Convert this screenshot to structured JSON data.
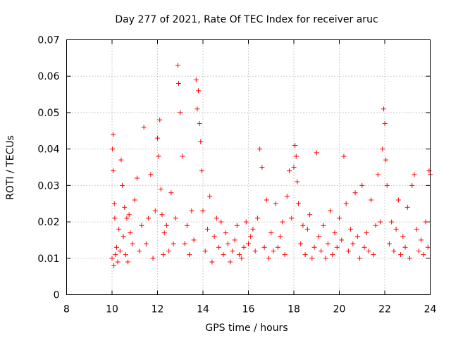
{
  "chart_data": {
    "type": "scatter",
    "title": "Day 277 of 2021, Rate Of TEC Index for receiver aruc",
    "xlabel": "GPS time / hours",
    "ylabel": "ROTI / TECUs",
    "xlim": [
      8,
      24
    ],
    "ylim": [
      0,
      0.07
    ],
    "x_ticks": [
      "8",
      "10",
      "12",
      "14",
      "16",
      "18",
      "20",
      "22",
      "24"
    ],
    "y_ticks": [
      "0",
      "0.01",
      "0.02",
      "0.03",
      "0.04",
      "0.05",
      "0.06",
      "0.07"
    ],
    "grid": true,
    "marker": "+",
    "series_color": "#ff0000",
    "series": [
      {
        "x": [
          10.0,
          10.02,
          10.05,
          10.05,
          10.08,
          10.1,
          10.12,
          10.15,
          10.2,
          10.25,
          10.3,
          10.35,
          10.4,
          10.45,
          10.5,
          10.55,
          10.6,
          10.65,
          10.7,
          10.75,
          10.8,
          10.9,
          11.0,
          11.1,
          11.2,
          11.3,
          11.4,
          11.5,
          11.6,
          11.7,
          11.8,
          11.9,
          12.0,
          12.05,
          12.1,
          12.15,
          12.2,
          12.25,
          12.3,
          12.4,
          12.5,
          12.6,
          12.7,
          12.8,
          12.9,
          12.93,
          13.0,
          13.1,
          13.2,
          13.3,
          13.4,
          13.5,
          13.6,
          13.7,
          13.75,
          13.8,
          13.85,
          13.9,
          13.95,
          14.0,
          14.1,
          14.2,
          14.3,
          14.4,
          14.5,
          14.6,
          14.7,
          14.8,
          14.9,
          15.0,
          15.1,
          15.2,
          15.3,
          15.4,
          15.5,
          15.6,
          15.7,
          15.8,
          15.9,
          16.0,
          16.1,
          16.2,
          16.3,
          16.4,
          16.5,
          16.6,
          16.7,
          16.8,
          16.9,
          17.0,
          17.1,
          17.2,
          17.3,
          17.4,
          17.5,
          17.6,
          17.7,
          17.8,
          17.9,
          18.0,
          18.05,
          18.1,
          18.15,
          18.2,
          18.3,
          18.4,
          18.5,
          18.6,
          18.7,
          18.8,
          18.9,
          19.0,
          19.1,
          19.2,
          19.3,
          19.4,
          19.5,
          19.6,
          19.7,
          19.8,
          19.9,
          20.0,
          20.1,
          20.2,
          20.3,
          20.4,
          20.5,
          20.6,
          20.7,
          20.8,
          20.9,
          21.0,
          21.1,
          21.2,
          21.3,
          21.4,
          21.5,
          21.6,
          21.7,
          21.8,
          21.9,
          21.95,
          22.0,
          22.05,
          22.1,
          22.2,
          22.3,
          22.4,
          22.5,
          22.6,
          22.7,
          22.8,
          22.9,
          23.0,
          23.1,
          23.2,
          23.3,
          23.4,
          23.5,
          23.6,
          23.7,
          23.8,
          23.9,
          23.95,
          24.0
        ],
        "y": [
          0.01,
          0.04,
          0.044,
          0.034,
          0.008,
          0.025,
          0.021,
          0.011,
          0.013,
          0.009,
          0.018,
          0.012,
          0.037,
          0.03,
          0.016,
          0.024,
          0.011,
          0.021,
          0.009,
          0.022,
          0.017,
          0.014,
          0.026,
          0.032,
          0.012,
          0.019,
          0.046,
          0.014,
          0.021,
          0.033,
          0.01,
          0.023,
          0.043,
          0.038,
          0.048,
          0.029,
          0.022,
          0.011,
          0.017,
          0.019,
          0.012,
          0.028,
          0.014,
          0.021,
          0.063,
          0.058,
          0.05,
          0.038,
          0.014,
          0.019,
          0.011,
          0.023,
          0.015,
          0.059,
          0.051,
          0.056,
          0.047,
          0.042,
          0.034,
          0.023,
          0.012,
          0.018,
          0.027,
          0.009,
          0.016,
          0.021,
          0.013,
          0.02,
          0.011,
          0.017,
          0.014,
          0.009,
          0.012,
          0.015,
          0.019,
          0.011,
          0.01,
          0.013,
          0.02,
          0.014,
          0.016,
          0.018,
          0.012,
          0.021,
          0.04,
          0.035,
          0.013,
          0.026,
          0.01,
          0.017,
          0.012,
          0.025,
          0.013,
          0.016,
          0.02,
          0.011,
          0.027,
          0.034,
          0.021,
          0.035,
          0.041,
          0.038,
          0.031,
          0.025,
          0.014,
          0.019,
          0.011,
          0.018,
          0.022,
          0.01,
          0.013,
          0.039,
          0.016,
          0.012,
          0.019,
          0.01,
          0.014,
          0.023,
          0.011,
          0.017,
          0.013,
          0.021,
          0.015,
          0.038,
          0.025,
          0.012,
          0.018,
          0.014,
          0.028,
          0.016,
          0.01,
          0.03,
          0.013,
          0.017,
          0.012,
          0.026,
          0.011,
          0.019,
          0.033,
          0.02,
          0.04,
          0.051,
          0.047,
          0.037,
          0.03,
          0.014,
          0.02,
          0.012,
          0.018,
          0.026,
          0.011,
          0.016,
          0.013,
          0.024,
          0.01,
          0.03,
          0.033,
          0.018,
          0.012,
          0.015,
          0.011,
          0.02,
          0.013,
          0.034,
          0.033
        ]
      }
    ]
  }
}
